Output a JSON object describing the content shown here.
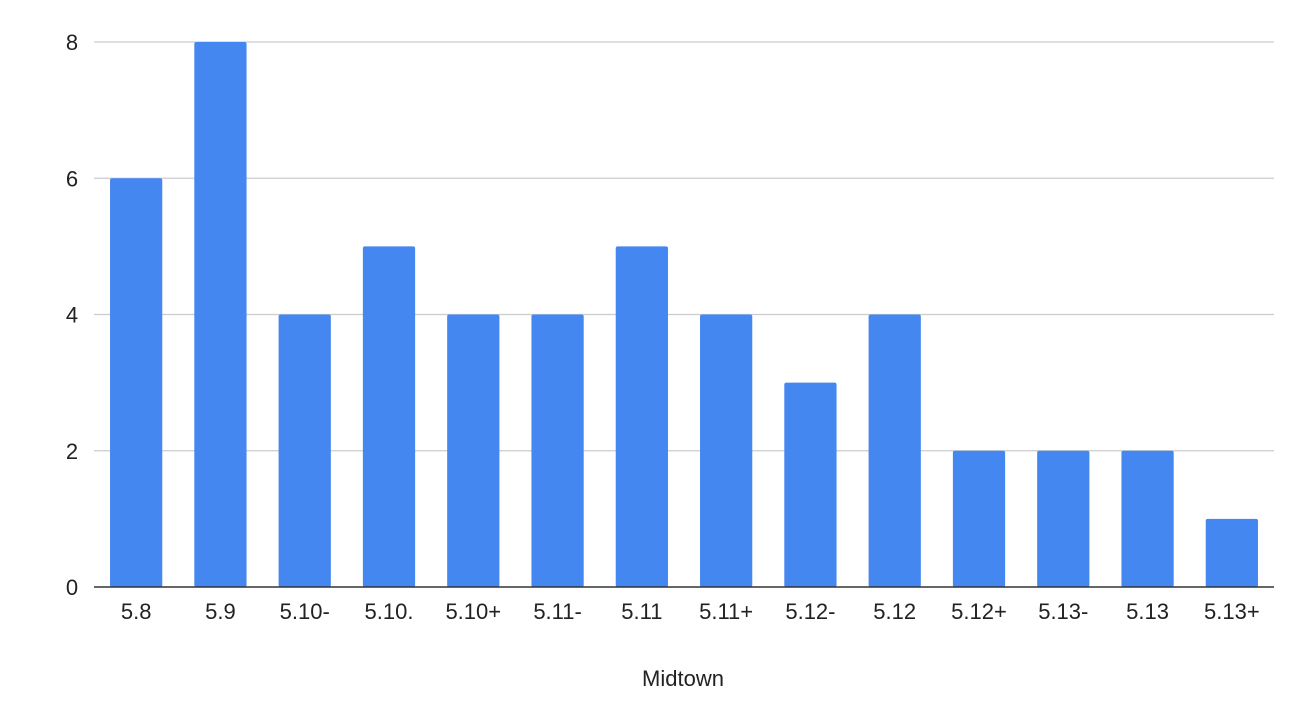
{
  "chart_data": {
    "type": "bar",
    "categories": [
      "5.8",
      "5.9",
      "5.10-",
      "5.10.",
      "5.10+",
      "5.11-",
      "5.11",
      "5.11+",
      "5.12-",
      "5.12",
      "5.12+",
      "5.13-",
      "5.13",
      "5.13+"
    ],
    "values": [
      6,
      8,
      4,
      5,
      4,
      4,
      5,
      4,
      3,
      4,
      2,
      2,
      2,
      1
    ],
    "title": "",
    "xlabel": "Midtown",
    "ylabel": "",
    "ylim": [
      0,
      8
    ],
    "yticks": [
      "0",
      "2",
      "4",
      "6",
      "8"
    ],
    "grid": true,
    "legend": "none",
    "colors": {
      "bar": "#4587f0",
      "grid": "#cccccc",
      "baseline": "#333333",
      "text": "#222222"
    }
  }
}
